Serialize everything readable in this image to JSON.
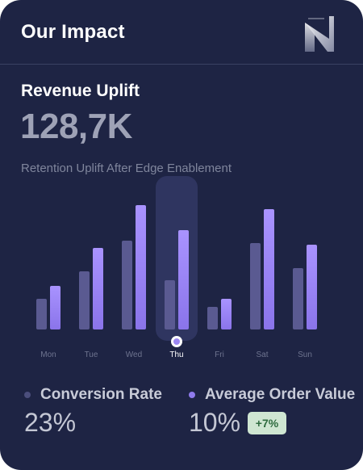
{
  "header": {
    "title": "Our Impact",
    "logo_icon": "brand-logo-icon"
  },
  "metric": {
    "title": "Revenue Uplift",
    "value": "128,7K"
  },
  "chart_data": {
    "type": "bar",
    "title": "Retention Uplift After Edge Enablement",
    "categories": [
      "Mon",
      "Tue",
      "Wed",
      "Thu",
      "Fri",
      "Sat",
      "Sun"
    ],
    "highlighted": "Thu",
    "series": [
      {
        "name": "Conversion Rate",
        "color": "#5a5a91",
        "values": [
          38,
          72,
          110,
          61,
          28,
          107,
          76
        ]
      },
      {
        "name": "Average Order Value",
        "color": "#9b86f2",
        "values": [
          54,
          101,
          154,
          123,
          38,
          149,
          105
        ]
      }
    ]
  },
  "stats": {
    "conversion": {
      "label": "Conversion Rate",
      "value": "23%",
      "dot_color": "#4b4e7c"
    },
    "aov": {
      "label": "Average Order Value",
      "value": "10%",
      "delta": "+7%",
      "dot_color": "#8f7bed"
    }
  }
}
